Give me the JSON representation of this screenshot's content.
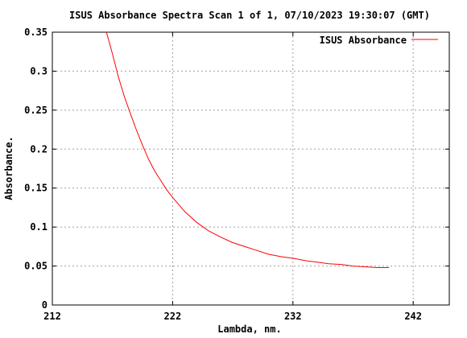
{
  "chart_data": {
    "type": "line",
    "title": "ISUS Absorbance Spectra Scan 1 of 1, 07/10/2023 19:30:07 (GMT)",
    "xlabel": "Lambda, nm.",
    "ylabel": "Absorbance.",
    "xlim": [
      212,
      245
    ],
    "ylim": [
      0,
      0.35
    ],
    "xticks": [
      212,
      222,
      232,
      242
    ],
    "xtick_labels": [
      "212",
      "222",
      "232",
      "242"
    ],
    "yticks": [
      0,
      0.05,
      0.1,
      0.15,
      0.2,
      0.25,
      0.3,
      0.35
    ],
    "ytick_labels": [
      "0",
      "0.05",
      "0.1",
      "0.15",
      "0.2",
      "0.25",
      "0.3",
      "0.35"
    ],
    "grid": true,
    "legend_position": "top-right",
    "series": [
      {
        "name": "ISUS Absorbance",
        "color": "#ff0000",
        "x": [
          216.5,
          217.0,
          217.5,
          218.0,
          218.5,
          219.0,
          219.5,
          220.0,
          220.5,
          221.0,
          221.5,
          222.0,
          222.5,
          223.0,
          224.0,
          225.0,
          226.0,
          227.0,
          228.0,
          229.0,
          230.0,
          231.0,
          232.0,
          233.0,
          234.0,
          235.0,
          236.0,
          237.0,
          238.0,
          239.0,
          240.0
        ],
        "y": [
          0.35,
          0.322,
          0.292,
          0.267,
          0.245,
          0.224,
          0.205,
          0.187,
          0.172,
          0.16,
          0.148,
          0.138,
          0.129,
          0.12,
          0.106,
          0.095,
          0.087,
          0.08,
          0.075,
          0.07,
          0.065,
          0.062,
          0.06,
          0.057,
          0.055,
          0.053,
          0.052,
          0.05,
          0.049,
          0.048,
          0.048
        ]
      }
    ]
  }
}
